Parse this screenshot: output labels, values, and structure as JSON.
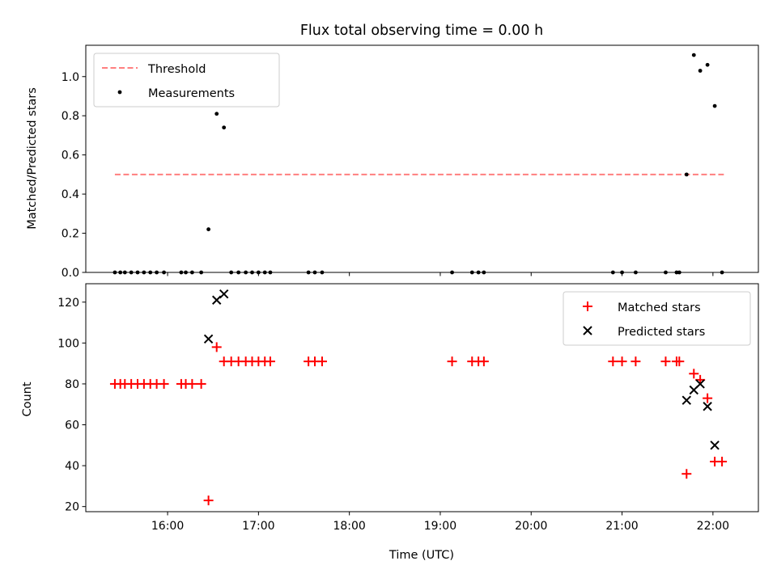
{
  "chart_data": [
    {
      "type": "scatter",
      "title": "Flux total observing time = 0.00 h",
      "xlabel": "",
      "ylabel": "Matched/Predicted stars",
      "xlim": [
        15.1,
        22.5
      ],
      "ylim": [
        0,
        1.16
      ],
      "x_ticks": [
        16,
        17,
        18,
        19,
        20,
        21,
        22
      ],
      "y_ticks": [
        0.0,
        0.2,
        0.4,
        0.6,
        0.8,
        1.0
      ],
      "y_tick_labels": [
        "0.0",
        "0.2",
        "0.4",
        "0.6",
        "0.8",
        "1.0"
      ],
      "legend_position": "top-left",
      "threshold": {
        "name": "Threshold",
        "value": 0.5,
        "x_start": 15.42,
        "x_end": 22.12,
        "color": "#ff7f7f"
      },
      "series": [
        {
          "name": "Measurements",
          "color": "#000000",
          "marker": "dot",
          "points": [
            [
              15.42,
              0
            ],
            [
              15.48,
              0
            ],
            [
              15.53,
              0
            ],
            [
              15.6,
              0
            ],
            [
              15.67,
              0
            ],
            [
              15.74,
              0
            ],
            [
              15.81,
              0
            ],
            [
              15.88,
              0
            ],
            [
              15.96,
              0
            ],
            [
              16.15,
              0
            ],
            [
              16.2,
              0
            ],
            [
              16.27,
              0
            ],
            [
              16.37,
              0
            ],
            [
              16.45,
              0.22
            ],
            [
              16.54,
              0.81
            ],
            [
              16.62,
              0.74
            ],
            [
              16.7,
              0
            ],
            [
              16.78,
              0
            ],
            [
              16.86,
              0
            ],
            [
              16.93,
              0
            ],
            [
              17.0,
              0
            ],
            [
              17.07,
              0
            ],
            [
              17.13,
              0
            ],
            [
              17.55,
              0
            ],
            [
              17.62,
              0
            ],
            [
              17.7,
              0
            ],
            [
              19.13,
              0
            ],
            [
              19.35,
              0
            ],
            [
              19.42,
              0
            ],
            [
              19.48,
              0
            ],
            [
              20.9,
              0
            ],
            [
              21.0,
              0
            ],
            [
              21.15,
              0
            ],
            [
              21.48,
              0
            ],
            [
              21.6,
              0
            ],
            [
              21.63,
              0
            ],
            [
              21.71,
              0.5
            ],
            [
              21.79,
              1.11
            ],
            [
              21.86,
              1.03
            ],
            [
              21.94,
              1.06
            ],
            [
              22.02,
              0.85
            ],
            [
              22.1,
              0
            ]
          ]
        }
      ]
    },
    {
      "type": "scatter",
      "title": "",
      "xlabel": "Time (UTC)",
      "ylabel": "Count",
      "xlim": [
        15.1,
        22.5
      ],
      "ylim": [
        17.5,
        129
      ],
      "x_ticks": [
        16,
        17,
        18,
        19,
        20,
        21,
        22
      ],
      "x_tick_labels": [
        "16:00",
        "17:00",
        "18:00",
        "19:00",
        "20:00",
        "21:00",
        "22:00"
      ],
      "y_ticks": [
        20,
        40,
        60,
        80,
        100,
        120
      ],
      "y_tick_labels": [
        "20",
        "40",
        "60",
        "80",
        "100",
        "120"
      ],
      "legend_position": "top-right",
      "series": [
        {
          "name": "Matched stars",
          "color": "#ff0000",
          "marker": "plus",
          "points": [
            [
              15.42,
              80
            ],
            [
              15.48,
              80
            ],
            [
              15.53,
              80
            ],
            [
              15.6,
              80
            ],
            [
              15.67,
              80
            ],
            [
              15.74,
              80
            ],
            [
              15.81,
              80
            ],
            [
              15.88,
              80
            ],
            [
              15.96,
              80
            ],
            [
              16.15,
              80
            ],
            [
              16.2,
              80
            ],
            [
              16.27,
              80
            ],
            [
              16.37,
              80
            ],
            [
              16.45,
              23
            ],
            [
              16.54,
              98
            ],
            [
              16.62,
              91
            ],
            [
              16.7,
              91
            ],
            [
              16.78,
              91
            ],
            [
              16.86,
              91
            ],
            [
              16.93,
              91
            ],
            [
              17.0,
              91
            ],
            [
              17.07,
              91
            ],
            [
              17.13,
              91
            ],
            [
              17.55,
              91
            ],
            [
              17.62,
              91
            ],
            [
              17.7,
              91
            ],
            [
              19.13,
              91
            ],
            [
              19.35,
              91
            ],
            [
              19.42,
              91
            ],
            [
              19.48,
              91
            ],
            [
              20.9,
              91
            ],
            [
              21.0,
              91
            ],
            [
              21.15,
              91
            ],
            [
              21.48,
              91
            ],
            [
              21.6,
              91
            ],
            [
              21.63,
              91
            ],
            [
              21.71,
              36
            ],
            [
              21.79,
              85
            ],
            [
              21.86,
              82
            ],
            [
              21.94,
              73
            ],
            [
              22.02,
              42
            ],
            [
              22.1,
              42
            ]
          ]
        },
        {
          "name": "Predicted stars",
          "color": "#000000",
          "marker": "x",
          "points": [
            [
              16.45,
              102
            ],
            [
              16.54,
              121
            ],
            [
              16.62,
              124
            ],
            [
              21.71,
              72
            ],
            [
              21.79,
              77
            ],
            [
              21.86,
              80
            ],
            [
              21.94,
              69
            ],
            [
              22.02,
              50
            ]
          ]
        }
      ]
    }
  ]
}
